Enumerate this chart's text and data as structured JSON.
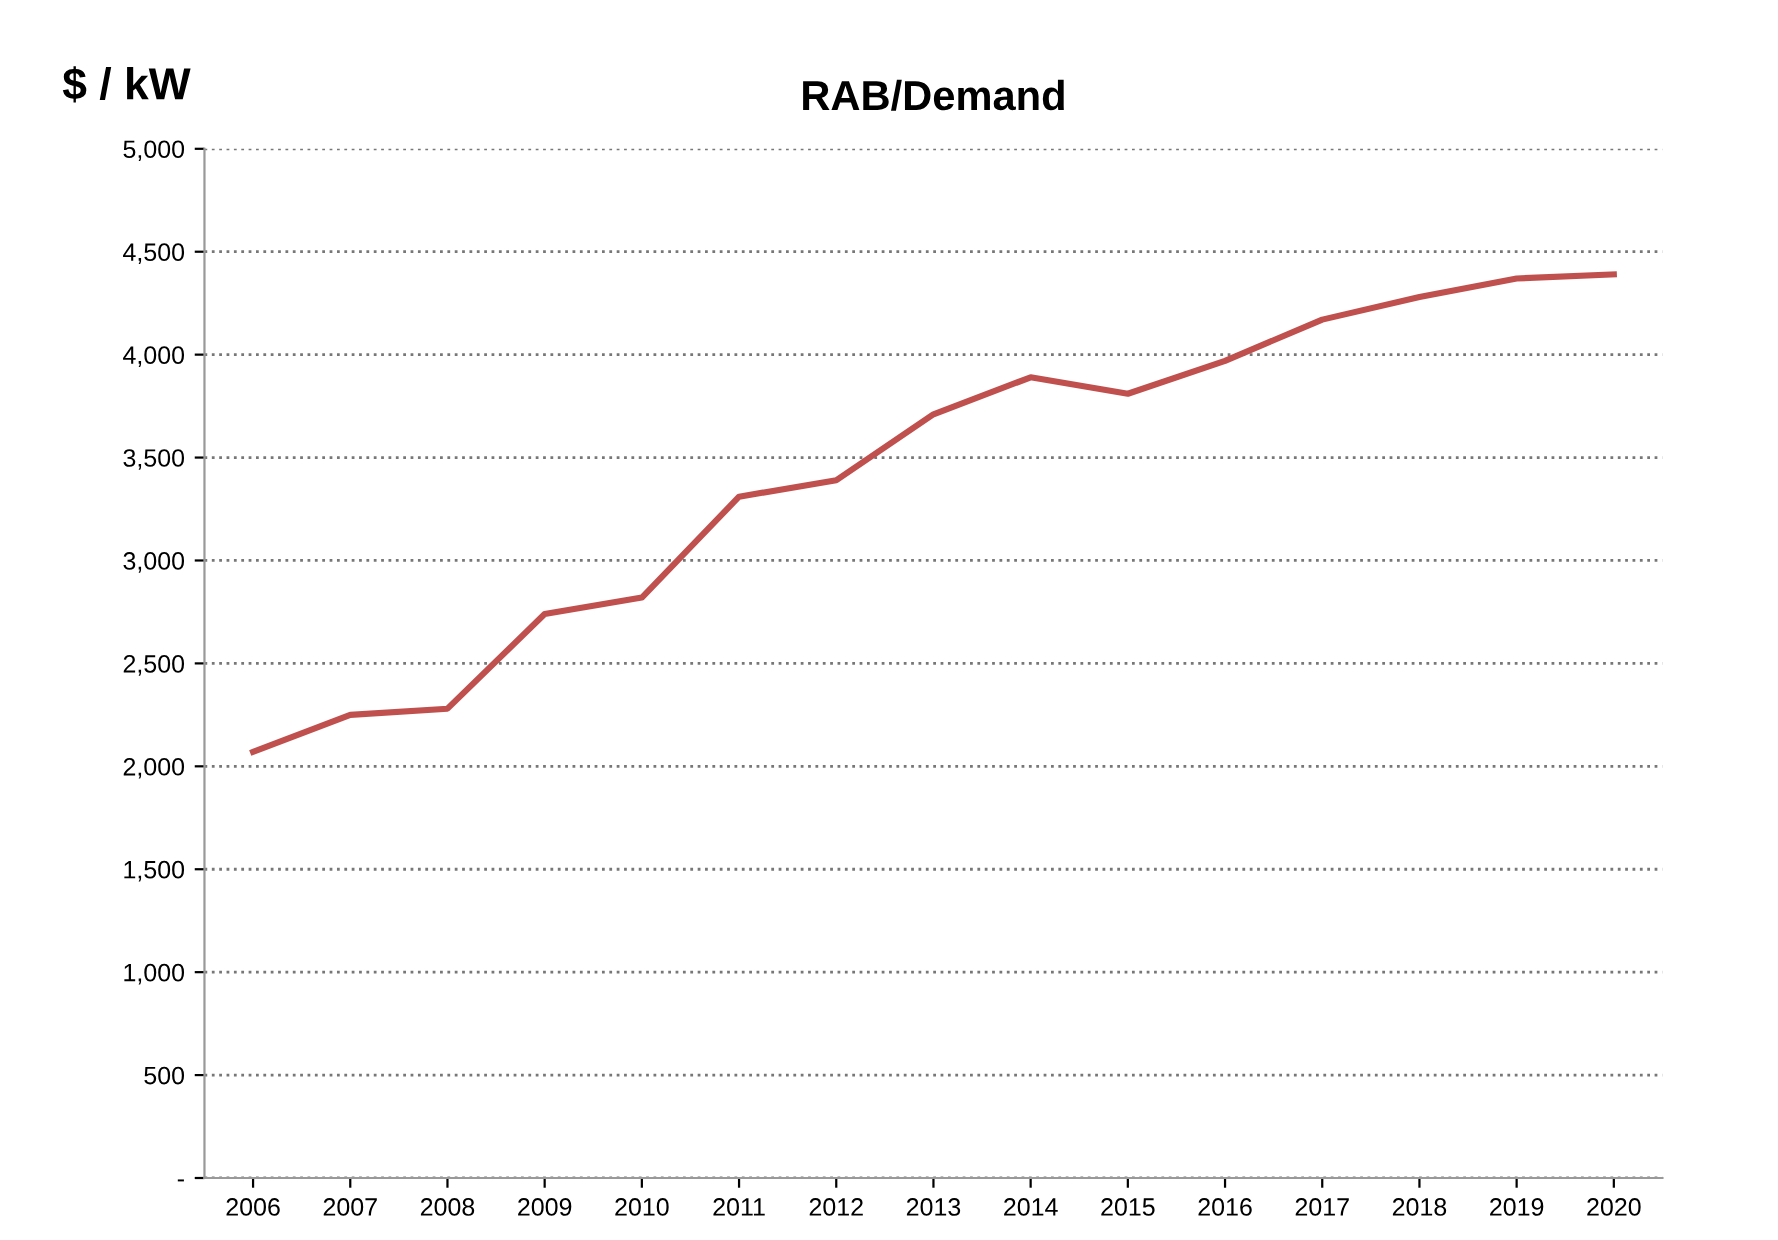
{
  "chart_data": {
    "type": "line",
    "title": "RAB/Demand",
    "ylabel": "$ / kW",
    "categories": [
      "2006",
      "2007",
      "2008",
      "2009",
      "2010",
      "2011",
      "2012",
      "2013",
      "2014",
      "2015",
      "2016",
      "2017",
      "2018",
      "2019",
      "2020"
    ],
    "series": [
      {
        "color": "#c0504d",
        "values": [
          2070,
          2250,
          2280,
          2740,
          2820,
          3310,
          3390,
          3710,
          3890,
          3810,
          3970,
          4170,
          4280,
          4370,
          4390
        ]
      }
    ],
    "ylim": [
      0,
      5000
    ],
    "yticks": [
      {
        "value": 0,
        "label": "-"
      },
      {
        "value": 500,
        "label": "500"
      },
      {
        "value": 1000,
        "label": "1,000"
      },
      {
        "value": 1500,
        "label": "1,500"
      },
      {
        "value": 2000,
        "label": "2,000"
      },
      {
        "value": 2500,
        "label": "2,500"
      },
      {
        "value": 3000,
        "label": "3,000"
      },
      {
        "value": 3500,
        "label": "3,500"
      },
      {
        "value": 4000,
        "label": "4,000"
      },
      {
        "value": 4500,
        "label": "4,500"
      },
      {
        "value": 5000,
        "label": "5,000"
      }
    ],
    "grid": "y",
    "legend": false,
    "marker": "none",
    "line_style": "solid"
  }
}
